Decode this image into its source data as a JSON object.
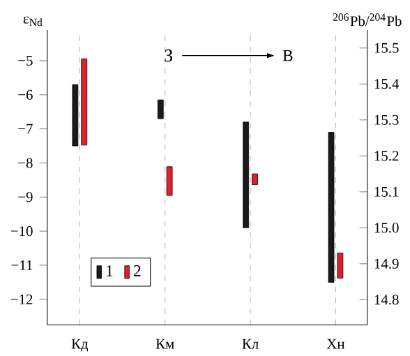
{
  "chart_data": {
    "type": "bar",
    "ylabel": "ε$_{Nd}$",
    "y2label": "$^{206}$Pb/$^{204}$Pb",
    "categories": [
      "Кд",
      "Км",
      "Кл",
      "Хн"
    ],
    "series": [
      {
        "name": "1",
        "color": "#1a1a1a",
        "base": [
          -7.5,
          -6.7,
          -9.9,
          -11.5
        ],
        "values": [
          1.8,
          0.55,
          3.1,
          4.4
        ]
      },
      {
        "name": "2",
        "color": "#e0202a",
        "axis": "y2",
        "base": [
          15.23,
          15.09,
          15.12,
          14.86
        ],
        "values": [
          0.24,
          0.08,
          0.03,
          0.07
        ]
      }
    ],
    "ylim": [
      -12.75,
      -4.1
    ],
    "yticks": [
      {
        "value": -5,
        "label": "−5"
      },
      {
        "value": -6,
        "label": "−6"
      },
      {
        "value": -7,
        "label": "−7"
      },
      {
        "value": -8,
        "label": "−8"
      },
      {
        "value": -9,
        "label": "−9"
      },
      {
        "value": -10,
        "label": "−10"
      },
      {
        "value": -11,
        "label": "−11"
      },
      {
        "value": -12,
        "label": "−12"
      }
    ],
    "y2lim": [
      14.73,
      15.55
    ],
    "y2ticks": [
      14.8,
      14.9,
      {
        "value": 15.0,
        "label": "15.0"
      },
      15.1,
      15.2,
      15.3,
      15.4,
      15.5
    ],
    "annotations": [
      "З",
      "В"
    ],
    "grid": "x",
    "legend": "bottom left"
  }
}
